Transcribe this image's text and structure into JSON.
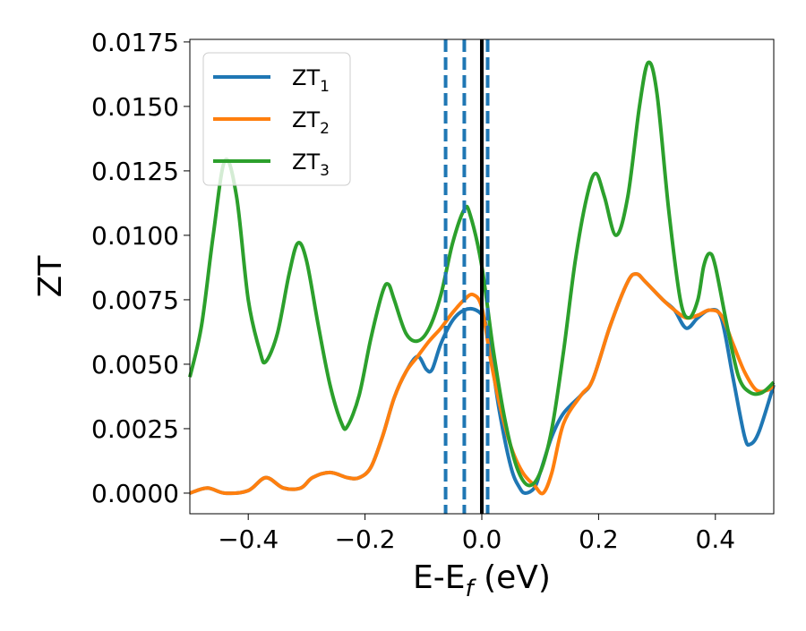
{
  "chart_data": {
    "type": "line",
    "title": "",
    "xlabel": {
      "base": "E-E",
      "sub": "f",
      "suffix": " (eV)"
    },
    "ylabel": "ZT",
    "xlim": [
      -0.5,
      0.5
    ],
    "ylim": [
      -0.0008,
      0.0176
    ],
    "xticks": [
      -0.4,
      -0.2,
      0.0,
      0.2,
      0.4
    ],
    "xtick_labels": [
      "−0.4",
      "−0.2",
      "0.0",
      "0.2",
      "0.4"
    ],
    "yticks": [
      0.0,
      0.0025,
      0.005,
      0.0075,
      0.01,
      0.0125,
      0.015,
      0.0175
    ],
    "ytick_labels": [
      "0.0000",
      "0.0025",
      "0.0050",
      "0.0075",
      "0.0100",
      "0.0125",
      "0.0150",
      "0.0175"
    ],
    "grid": false,
    "legend_position": "upper-left",
    "series": [
      {
        "name": "ZT",
        "sub": "1",
        "color": "#1f77b4",
        "points": [
          [
            -0.5,
            0.0
          ],
          [
            -0.47,
            0.0002
          ],
          [
            -0.44,
            0.0
          ],
          [
            -0.4,
            0.0001
          ],
          [
            -0.37,
            0.0006
          ],
          [
            -0.34,
            0.0002
          ],
          [
            -0.31,
            0.0002
          ],
          [
            -0.29,
            0.0006
          ],
          [
            -0.26,
            0.0008
          ],
          [
            -0.23,
            0.0006
          ],
          [
            -0.21,
            0.0006
          ],
          [
            -0.19,
            0.001
          ],
          [
            -0.17,
            0.0022
          ],
          [
            -0.15,
            0.0037
          ],
          [
            -0.13,
            0.0047
          ],
          [
            -0.11,
            0.0053
          ],
          [
            -0.095,
            0.0048
          ],
          [
            -0.085,
            0.0048
          ],
          [
            -0.07,
            0.0058
          ],
          [
            -0.05,
            0.0067
          ],
          [
            -0.03,
            0.0071
          ],
          [
            -0.01,
            0.0071
          ],
          [
            0.005,
            0.0067
          ],
          [
            0.015,
            0.0055
          ],
          [
            0.03,
            0.0032
          ],
          [
            0.05,
            0.001
          ],
          [
            0.065,
            0.0002
          ],
          [
            0.075,
            0.0
          ],
          [
            0.09,
            0.0002
          ],
          [
            0.1,
            0.0008
          ],
          [
            0.12,
            0.0022
          ],
          [
            0.14,
            0.0031
          ],
          [
            0.17,
            0.0038
          ],
          [
            0.19,
            0.0044
          ],
          [
            0.22,
            0.0065
          ],
          [
            0.25,
            0.0082
          ],
          [
            0.265,
            0.0085
          ],
          [
            0.28,
            0.0082
          ],
          [
            0.31,
            0.0075
          ],
          [
            0.33,
            0.0071
          ],
          [
            0.35,
            0.0064
          ],
          [
            0.37,
            0.0068
          ],
          [
            0.39,
            0.0071
          ],
          [
            0.41,
            0.0068
          ],
          [
            0.43,
            0.0045
          ],
          [
            0.45,
            0.0022
          ],
          [
            0.46,
            0.0019
          ],
          [
            0.475,
            0.0024
          ],
          [
            0.5,
            0.0042
          ]
        ]
      },
      {
        "name": "ZT",
        "sub": "2",
        "color": "#ff7f0e",
        "points": [
          [
            -0.5,
            0.0
          ],
          [
            -0.47,
            0.0002
          ],
          [
            -0.44,
            0.0
          ],
          [
            -0.4,
            0.0001
          ],
          [
            -0.37,
            0.0006
          ],
          [
            -0.34,
            0.0002
          ],
          [
            -0.31,
            0.0002
          ],
          [
            -0.29,
            0.0006
          ],
          [
            -0.26,
            0.0008
          ],
          [
            -0.23,
            0.0006
          ],
          [
            -0.21,
            0.0006
          ],
          [
            -0.19,
            0.001
          ],
          [
            -0.17,
            0.0022
          ],
          [
            -0.15,
            0.0037
          ],
          [
            -0.13,
            0.0047
          ],
          [
            -0.11,
            0.0053
          ],
          [
            -0.09,
            0.0059
          ],
          [
            -0.07,
            0.0064
          ],
          [
            -0.05,
            0.007
          ],
          [
            -0.03,
            0.0075
          ],
          [
            -0.015,
            0.0077
          ],
          [
            0.0,
            0.0072
          ],
          [
            0.015,
            0.0052
          ],
          [
            0.03,
            0.0035
          ],
          [
            0.05,
            0.0018
          ],
          [
            0.07,
            0.0008
          ],
          [
            0.09,
            0.0003
          ],
          [
            0.105,
            0.0
          ],
          [
            0.12,
            0.0008
          ],
          [
            0.14,
            0.0027
          ],
          [
            0.17,
            0.0038
          ],
          [
            0.19,
            0.0044
          ],
          [
            0.22,
            0.0065
          ],
          [
            0.25,
            0.0082
          ],
          [
            0.265,
            0.0085
          ],
          [
            0.28,
            0.0082
          ],
          [
            0.31,
            0.0075
          ],
          [
            0.33,
            0.0071
          ],
          [
            0.35,
            0.0068
          ],
          [
            0.37,
            0.0069
          ],
          [
            0.39,
            0.0071
          ],
          [
            0.41,
            0.0069
          ],
          [
            0.43,
            0.0058
          ],
          [
            0.45,
            0.0047
          ],
          [
            0.47,
            0.004
          ],
          [
            0.49,
            0.004
          ],
          [
            0.5,
            0.0042
          ]
        ]
      },
      {
        "name": "ZT",
        "sub": "3",
        "color": "#2ca02c",
        "points": [
          [
            -0.5,
            0.0045
          ],
          [
            -0.48,
            0.0065
          ],
          [
            -0.46,
            0.01
          ],
          [
            -0.44,
            0.0129
          ],
          [
            -0.42,
            0.0115
          ],
          [
            -0.4,
            0.0075
          ],
          [
            -0.38,
            0.0055
          ],
          [
            -0.37,
            0.0051
          ],
          [
            -0.35,
            0.0062
          ],
          [
            -0.33,
            0.0085
          ],
          [
            -0.315,
            0.0097
          ],
          [
            -0.3,
            0.009
          ],
          [
            -0.28,
            0.0065
          ],
          [
            -0.26,
            0.0042
          ],
          [
            -0.24,
            0.0027
          ],
          [
            -0.23,
            0.0026
          ],
          [
            -0.21,
            0.0038
          ],
          [
            -0.19,
            0.006
          ],
          [
            -0.17,
            0.0078
          ],
          [
            -0.16,
            0.0081
          ],
          [
            -0.15,
            0.0075
          ],
          [
            -0.13,
            0.0062
          ],
          [
            -0.11,
            0.0059
          ],
          [
            -0.09,
            0.0064
          ],
          [
            -0.07,
            0.0077
          ],
          [
            -0.05,
            0.0097
          ],
          [
            -0.03,
            0.011
          ],
          [
            -0.02,
            0.0108
          ],
          [
            0.0,
            0.0088
          ],
          [
            0.02,
            0.0055
          ],
          [
            0.04,
            0.0028
          ],
          [
            0.06,
            0.001
          ],
          [
            0.08,
            0.0003
          ],
          [
            0.1,
            0.0008
          ],
          [
            0.12,
            0.0025
          ],
          [
            0.14,
            0.0055
          ],
          [
            0.16,
            0.009
          ],
          [
            0.18,
            0.0115
          ],
          [
            0.195,
            0.0124
          ],
          [
            0.21,
            0.0115
          ],
          [
            0.23,
            0.01
          ],
          [
            0.25,
            0.0115
          ],
          [
            0.27,
            0.015
          ],
          [
            0.285,
            0.0167
          ],
          [
            0.3,
            0.0155
          ],
          [
            0.32,
            0.011
          ],
          [
            0.34,
            0.0075
          ],
          [
            0.355,
            0.0068
          ],
          [
            0.37,
            0.0075
          ],
          [
            0.38,
            0.0088
          ],
          [
            0.39,
            0.0093
          ],
          [
            0.4,
            0.0088
          ],
          [
            0.42,
            0.0065
          ],
          [
            0.44,
            0.0045
          ],
          [
            0.46,
            0.0039
          ],
          [
            0.48,
            0.0039
          ],
          [
            0.5,
            0.0043
          ]
        ]
      }
    ],
    "vertical_lines": [
      {
        "x": -0.062,
        "style": "dashed",
        "color": "#1f77b4"
      },
      {
        "x": -0.03,
        "style": "dashed",
        "color": "#1f77b4"
      },
      {
        "x": 0.01,
        "style": "dashed",
        "color": "#1f77b4"
      },
      {
        "x": 0.0,
        "style": "solid",
        "color": "#000000"
      }
    ]
  }
}
